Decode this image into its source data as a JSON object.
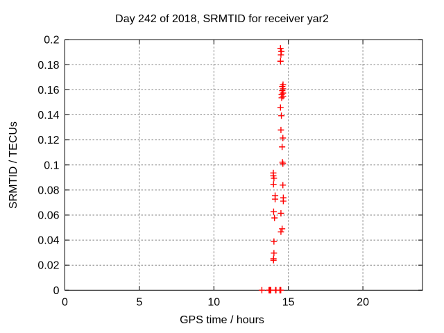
{
  "chart_data": {
    "type": "scatter",
    "title": "Day 242 of 2018, SRMTID for receiver yar2",
    "xlabel": "GPS time / hours",
    "ylabel": "SRMTID / TECUs",
    "xlim": [
      0,
      24
    ],
    "ylim": [
      0,
      0.2
    ],
    "xticks": [
      0,
      5,
      10,
      15,
      20
    ],
    "xtick_labels": [
      "0",
      "5",
      "10",
      "15",
      "20"
    ],
    "yticks": [
      0,
      0.02,
      0.04,
      0.06,
      0.08,
      0.1,
      0.12,
      0.14,
      0.16,
      0.18,
      0.2
    ],
    "ytick_labels": [
      "0",
      "0.02",
      "0.04",
      "0.06",
      "0.08",
      "0.1",
      "0.12",
      "0.14",
      "0.16",
      "0.18",
      "0.2"
    ],
    "grid": true,
    "legend": "none",
    "marker": "plus",
    "marker_color": "#ff0000",
    "border_color": "#000000",
    "grid_color": "#848484",
    "series": [
      {
        "name": "SRMTID",
        "points": [
          [
            14.47,
            0.1931
          ],
          [
            14.53,
            0.1906
          ],
          [
            14.5,
            0.1879
          ],
          [
            14.47,
            0.1828
          ],
          [
            14.64,
            0.1641
          ],
          [
            14.59,
            0.1626
          ],
          [
            14.64,
            0.1608
          ],
          [
            14.59,
            0.1593
          ],
          [
            14.64,
            0.1574
          ],
          [
            14.55,
            0.1561
          ],
          [
            14.64,
            0.1548
          ],
          [
            14.55,
            0.1536
          ],
          [
            14.47,
            0.1458
          ],
          [
            14.53,
            0.1393
          ],
          [
            14.5,
            0.1279
          ],
          [
            14.63,
            0.1215
          ],
          [
            14.58,
            0.1144
          ],
          [
            14.6,
            0.1022
          ],
          [
            14.63,
            0.101
          ],
          [
            13.99,
            0.0936
          ],
          [
            13.99,
            0.0913
          ],
          [
            14.03,
            0.0894
          ],
          [
            14.0,
            0.0845
          ],
          [
            14.63,
            0.0839
          ],
          [
            14.11,
            0.0755
          ],
          [
            14.11,
            0.0727
          ],
          [
            14.66,
            0.0738
          ],
          [
            14.66,
            0.0711
          ],
          [
            14.01,
            0.0627
          ],
          [
            14.5,
            0.0614
          ],
          [
            14.07,
            0.0577
          ],
          [
            14.58,
            0.049
          ],
          [
            14.5,
            0.0466
          ],
          [
            14.03,
            0.0389
          ],
          [
            14.03,
            0.0296
          ],
          [
            14.0,
            0.0251
          ],
          [
            14.0,
            0.0239
          ],
          [
            13.22,
            0.0
          ],
          [
            13.7,
            0.0
          ],
          [
            13.73,
            0.0
          ],
          [
            13.76,
            0.0
          ],
          [
            13.79,
            0.0
          ],
          [
            13.82,
            0.0
          ],
          [
            14.14,
            0.0
          ],
          [
            14.17,
            0.0
          ],
          [
            14.43,
            0.0
          ],
          [
            14.46,
            0.0
          ],
          [
            14.49,
            0.0
          ]
        ]
      }
    ]
  }
}
